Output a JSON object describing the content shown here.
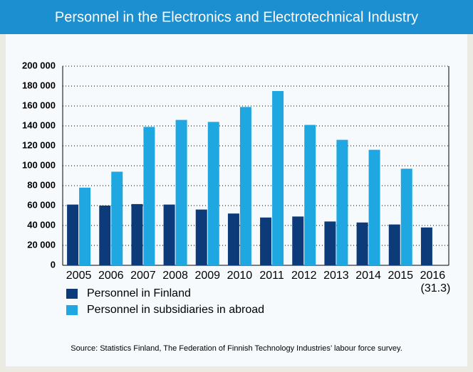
{
  "chart_data": {
    "type": "bar",
    "title": "Personnel in the Electronics and Electrotechnical Industry",
    "categories": [
      "2005",
      "2006",
      "2007",
      "2008",
      "2009",
      "2010",
      "2011",
      "2012",
      "2013",
      "2014",
      "2015",
      "2016"
    ],
    "category_note": "(31.3)",
    "series": [
      {
        "name": "Personnel in Finland",
        "color": "#0d3a78",
        "values": [
          61000,
          60000,
          61500,
          61000,
          56000,
          52000,
          48000,
          49000,
          44000,
          43000,
          41000,
          38000
        ]
      },
      {
        "name": "Personnel in subsidiaries in abroad",
        "color": "#1ea7e1",
        "values": [
          78000,
          94000,
          139000,
          146000,
          144000,
          159000,
          175000,
          141000,
          126000,
          116000,
          97000,
          null
        ]
      }
    ],
    "ylim": [
      0,
      200000
    ],
    "yticks": [
      0,
      {
        "value": 20000,
        "label": "20 000"
      },
      {
        "value": 40000,
        "label": "40 000"
      },
      {
        "value": 60000,
        "label": "60 000"
      },
      {
        "value": 80000,
        "label": "80 000"
      },
      {
        "value": 100000,
        "label": "100 000"
      },
      {
        "value": 120000,
        "label": "120 000"
      },
      {
        "value": 140000,
        "label": "140 000"
      },
      {
        "value": 160000,
        "label": "160 000"
      },
      {
        "value": 180000,
        "label": "180 000"
      },
      {
        "value": 200000,
        "label": "200 000"
      }
    ],
    "grid": true,
    "source": "Source: Statistics Finland, The Federation of Finnish Technology Industries’ labour force survey."
  }
}
